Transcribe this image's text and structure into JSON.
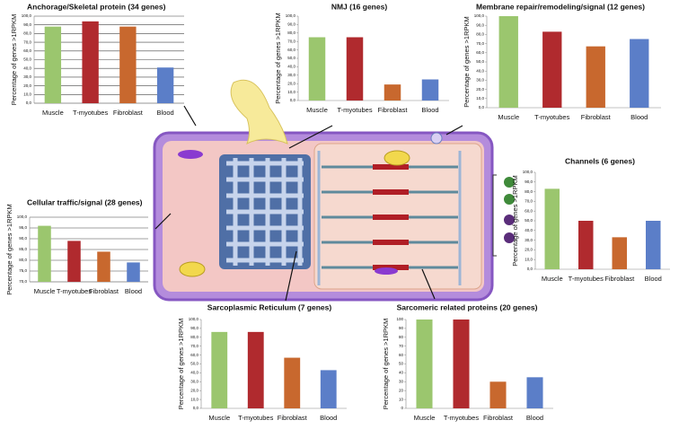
{
  "chart_data": [
    {
      "type": "bar",
      "title": "Anchorage/Skeletal protein (34 genes)",
      "ylabel": "Percentage of genes >1RPKM",
      "categories": [
        "Muscle",
        "T-myotubes",
        "Fibroblast",
        "Blood"
      ],
      "values": [
        88,
        94,
        88,
        41
      ],
      "colors": [
        "#9bc66e",
        "#b02a2e",
        "#c8682e",
        "#5b7ec8"
      ],
      "ylim": [
        0,
        100
      ],
      "grid": true,
      "yticks": [
        {
          "value": 0,
          "label": "0,0"
        },
        {
          "value": 10,
          "label": "10,0"
        },
        {
          "value": 20,
          "label": "20,0"
        },
        {
          "value": 30,
          "label": "30,0"
        },
        {
          "value": 40,
          "label": "40,0"
        },
        {
          "value": 50,
          "label": "50,0"
        },
        {
          "value": 60,
          "label": "60,0"
        },
        {
          "value": 70,
          "label": "70,0"
        },
        {
          "value": 80,
          "label": "80,0"
        },
        {
          "value": 90,
          "label": "90,0"
        },
        {
          "value": 100,
          "label": "100,0"
        }
      ]
    },
    {
      "type": "bar",
      "title": "NMJ (16 genes)",
      "ylabel": "Percentage of genes >1RPKM",
      "categories": [
        "Muscle",
        "T-myotubes",
        "Fibroblast",
        "Blood"
      ],
      "values": [
        75,
        75,
        19,
        25
      ],
      "colors": [
        "#9bc66e",
        "#b02a2e",
        "#c8682e",
        "#5b7ec8"
      ],
      "ylim": [
        0,
        100
      ],
      "grid": false,
      "yticks": [
        {
          "value": 0,
          "label": "0,0"
        },
        {
          "value": 10,
          "label": "10,0"
        },
        {
          "value": 20,
          "label": "20,0"
        },
        {
          "value": 30,
          "label": "30,0"
        },
        {
          "value": 40,
          "label": "40,0"
        },
        {
          "value": 50,
          "label": "50,0"
        },
        {
          "value": 60,
          "label": "60,0"
        },
        {
          "value": 70,
          "label": "70,0"
        },
        {
          "value": 80,
          "label": "80,0"
        },
        {
          "value": 90,
          "label": "90,0"
        },
        {
          "value": 100,
          "label": "100,0"
        }
      ]
    },
    {
      "type": "bar",
      "title": "Membrane repair/remodeling/signal (12 genes)",
      "ylabel": "Percentage of genes >1RPKM",
      "categories": [
        "Muscle",
        "T-myotubes",
        "Fibroblast",
        "Blood"
      ],
      "values": [
        100,
        83,
        67,
        75
      ],
      "colors": [
        "#9bc66e",
        "#b02a2e",
        "#c8682e",
        "#5b7ec8"
      ],
      "ylim": [
        0,
        100
      ],
      "grid": false,
      "yticks": [
        {
          "value": 0,
          "label": "0,0"
        },
        {
          "value": 10,
          "label": "10,0"
        },
        {
          "value": 20,
          "label": "20,0"
        },
        {
          "value": 30,
          "label": "30,0"
        },
        {
          "value": 40,
          "label": "40,0"
        },
        {
          "value": 50,
          "label": "50,0"
        },
        {
          "value": 60,
          "label": "60,0"
        },
        {
          "value": 70,
          "label": "70,0"
        },
        {
          "value": 80,
          "label": "80,0"
        },
        {
          "value": 90,
          "label": "90,0"
        },
        {
          "value": 100,
          "label": "100,0"
        }
      ]
    },
    {
      "type": "bar",
      "title": "Channels (6 genes)",
      "ylabel": "Percentage of genes >1RPKM",
      "categories": [
        "Muscle",
        "T-myotubes",
        "Fibroblast",
        "Blood"
      ],
      "values": [
        83,
        50,
        33,
        50
      ],
      "colors": [
        "#9bc66e",
        "#b02a2e",
        "#c8682e",
        "#5b7ec8"
      ],
      "ylim": [
        0,
        100
      ],
      "grid": false,
      "yticks": [
        {
          "value": 0,
          "label": "0,0"
        },
        {
          "value": 10,
          "label": "10,0"
        },
        {
          "value": 20,
          "label": "20,0"
        },
        {
          "value": 30,
          "label": "30,0"
        },
        {
          "value": 40,
          "label": "40,0"
        },
        {
          "value": 50,
          "label": "50,0"
        },
        {
          "value": 60,
          "label": "60,0"
        },
        {
          "value": 70,
          "label": "70,0"
        },
        {
          "value": 80,
          "label": "80,0"
        },
        {
          "value": 90,
          "label": "90,0"
        },
        {
          "value": 100,
          "label": "100,0"
        }
      ]
    },
    {
      "type": "bar",
      "title": "Cellular traffic/signal (28 genes)",
      "ylabel": "Percentage of genes >1RPKM",
      "categories": [
        "Muscle",
        "T-myotubes",
        "Fibroblast",
        "Blood"
      ],
      "values": [
        96,
        89,
        84,
        79
      ],
      "colors": [
        "#9bc66e",
        "#b02a2e",
        "#c8682e",
        "#5b7ec8"
      ],
      "ylim": [
        70,
        100
      ],
      "grid": true,
      "yticks": [
        {
          "value": 70,
          "label": "70,0"
        },
        {
          "value": 75,
          "label": "75,0"
        },
        {
          "value": 80,
          "label": "80,0"
        },
        {
          "value": 85,
          "label": "85,0"
        },
        {
          "value": 90,
          "label": "90,0"
        },
        {
          "value": 95,
          "label": "95,0"
        },
        {
          "value": 100,
          "label": "100,0"
        }
      ]
    },
    {
      "type": "bar",
      "title": "Sarcoplasmic Reticulum (7 genes)",
      "ylabel": "Percentage of genes >1RPKM",
      "categories": [
        "Muscle",
        "T-myotubes",
        "Fibroblast",
        "Blood"
      ],
      "values": [
        86,
        86,
        57,
        43
      ],
      "colors": [
        "#9bc66e",
        "#b02a2e",
        "#c8682e",
        "#5b7ec8"
      ],
      "ylim": [
        0,
        100
      ],
      "grid": false,
      "yticks": [
        {
          "value": 0,
          "label": "0,0"
        },
        {
          "value": 10,
          "label": "10,0"
        },
        {
          "value": 20,
          "label": "20,0"
        },
        {
          "value": 30,
          "label": "30,0"
        },
        {
          "value": 40,
          "label": "40,0"
        },
        {
          "value": 50,
          "label": "50,0"
        },
        {
          "value": 60,
          "label": "60,0"
        },
        {
          "value": 70,
          "label": "70,0"
        },
        {
          "value": 80,
          "label": "80,0"
        },
        {
          "value": 90,
          "label": "90,0"
        },
        {
          "value": 100,
          "label": "100,0"
        }
      ]
    },
    {
      "type": "bar",
      "title": "Sarcomeric related proteins (20 genes)",
      "ylabel": "Percentage of genes >1RPKM",
      "categories": [
        "Muscle",
        "T-myotubes",
        "Fibroblast",
        "Blood"
      ],
      "values": [
        100,
        100,
        30,
        35
      ],
      "colors": [
        "#9bc66e",
        "#b02a2e",
        "#c8682e",
        "#5b7ec8"
      ],
      "ylim": [
        0,
        100
      ],
      "grid": false,
      "yticks": [
        0,
        10,
        20,
        30,
        40,
        50,
        60,
        70,
        80,
        90,
        100
      ]
    }
  ]
}
